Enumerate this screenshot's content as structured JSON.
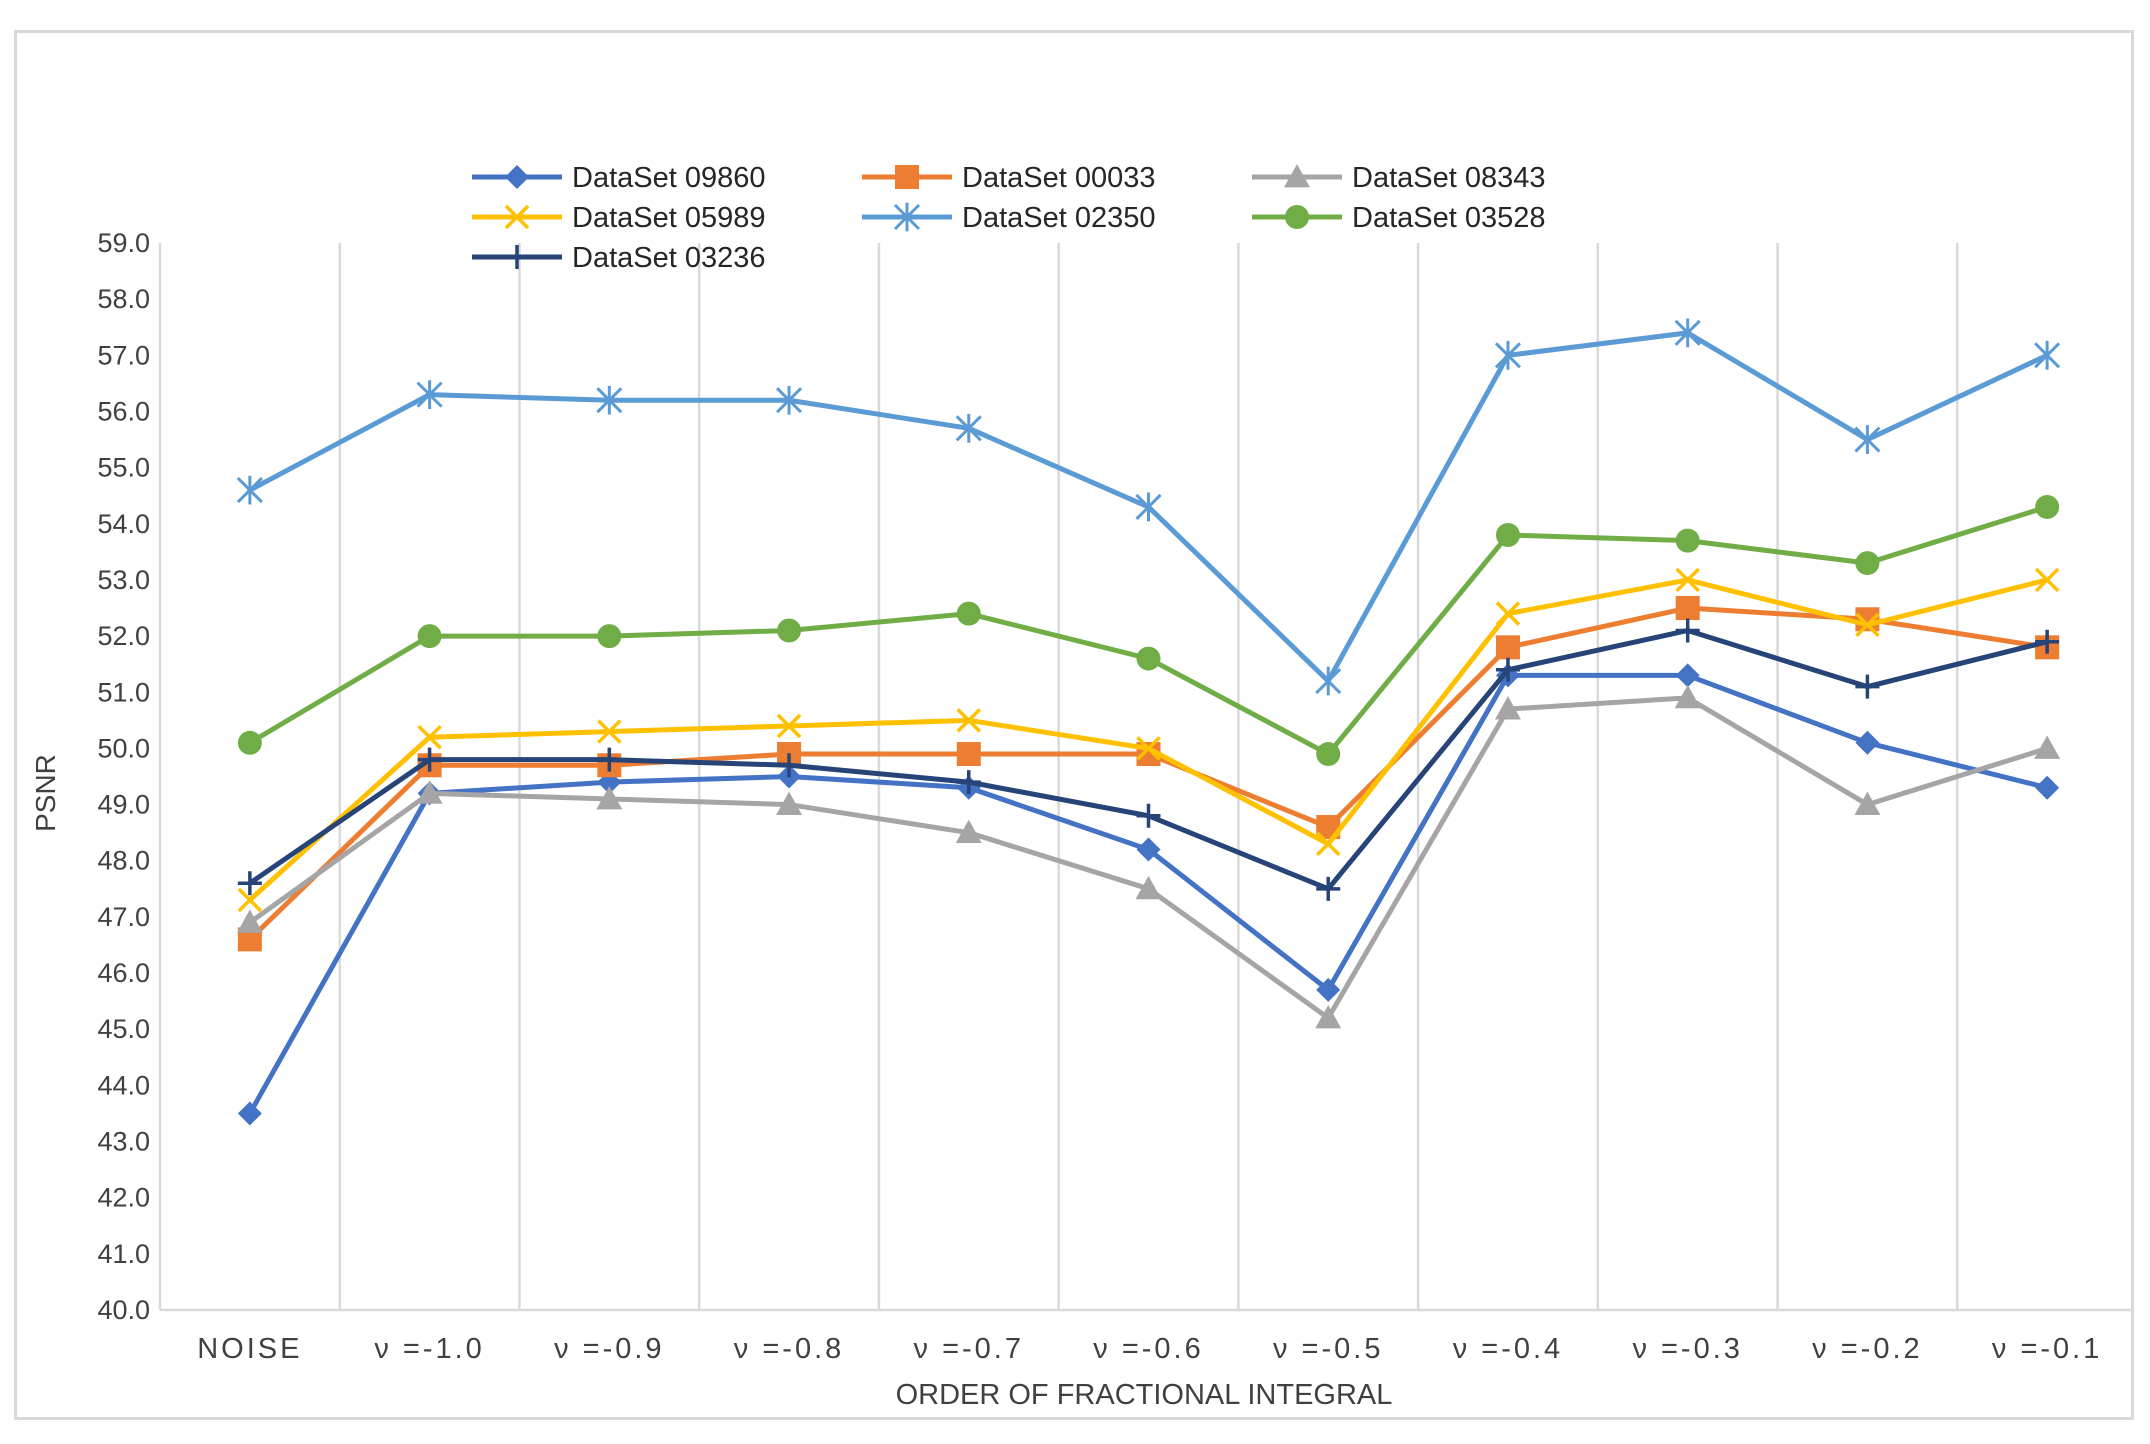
{
  "chart_data": {
    "type": "line",
    "title": "",
    "xlabel": "ORDER OF FRACTIONAL INTEGRAL",
    "ylabel": "PSNR",
    "ylim": [
      40,
      59
    ],
    "ytick_step": 1,
    "grid": "vertical",
    "legend_position": "top-left",
    "categories": [
      "NOISE",
      "ν =-1.0",
      "ν =-0.9",
      "ν =-0.8",
      "ν =-0.7",
      "ν =-0.6",
      "ν =-0.5",
      "ν =-0.4",
      "ν =-0.3",
      "ν =-0.2",
      "ν =-0.1"
    ],
    "series": [
      {
        "name": "DataSet 09860",
        "color": "#4472c4",
        "marker": "diamond",
        "values": [
          43.5,
          49.2,
          49.4,
          49.5,
          49.3,
          48.2,
          45.7,
          51.3,
          51.3,
          50.1,
          49.3
        ]
      },
      {
        "name": "DataSet 00033",
        "color": "#ed7d31",
        "marker": "square",
        "values": [
          46.6,
          49.7,
          49.7,
          49.9,
          49.9,
          49.9,
          48.6,
          51.8,
          52.5,
          52.3,
          51.8
        ]
      },
      {
        "name": "DataSet 08343",
        "color": "#a5a5a5",
        "marker": "triangle",
        "values": [
          46.9,
          49.2,
          49.1,
          49.0,
          48.5,
          47.5,
          45.2,
          50.7,
          50.9,
          49.0,
          50.0
        ]
      },
      {
        "name": "DataSet 05989",
        "color": "#ffc000",
        "marker": "x",
        "values": [
          47.3,
          50.2,
          50.3,
          50.4,
          50.5,
          50.0,
          48.3,
          52.4,
          53.0,
          52.2,
          53.0
        ]
      },
      {
        "name": "DataSet 02350",
        "color": "#5b9bd5",
        "marker": "asterisk",
        "values": [
          54.6,
          56.3,
          56.2,
          56.2,
          55.7,
          54.3,
          51.2,
          57.0,
          57.4,
          55.5,
          57.0
        ]
      },
      {
        "name": "DataSet 03528",
        "color": "#70ad47",
        "marker": "circle",
        "values": [
          50.1,
          52.0,
          52.0,
          52.1,
          52.4,
          51.6,
          49.9,
          53.8,
          53.7,
          53.3,
          54.3
        ]
      },
      {
        "name": "DataSet 03236",
        "color": "#264478",
        "marker": "plus",
        "values": [
          47.6,
          49.8,
          49.8,
          49.7,
          49.4,
          48.8,
          47.5,
          51.4,
          52.1,
          51.1,
          51.9
        ]
      }
    ]
  }
}
